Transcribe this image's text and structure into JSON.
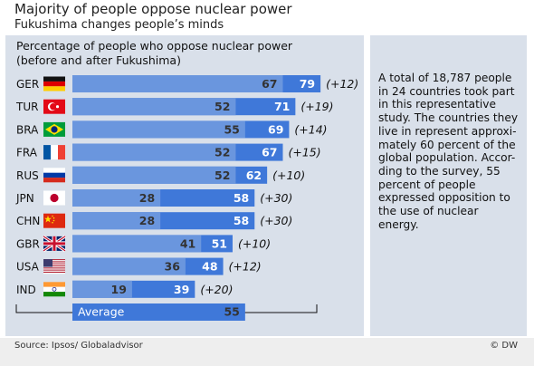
{
  "title": "Majority of people oppose nuclear power",
  "subtitle": "Fukushima changes people’s minds",
  "note": "A total of 18,787 people in 24 countries took part in this representative study. The countries they live in represent approxi-mately 60 percent of the global population. Accor-ding to the survey, 55 percent of people expressed opposition to the use of nuclear energy.",
  "source": "Source: Ipsos/ Globaladvisor",
  "credit": "© DW",
  "colors": {
    "before": "#6a96de",
    "after": "#3f78d9",
    "panel": "#d9e0ea",
    "text_on_bar": "#ffffff"
  },
  "chart_data": {
    "type": "bar",
    "title_lines": [
      "Percentage of people who oppose nuclear power",
      "(before and after Fukushima)"
    ],
    "categories": [
      "GER",
      "TUR",
      "BRA",
      "FRA",
      "RUS",
      "JPN",
      "CHN",
      "GBR",
      "USA",
      "IND"
    ],
    "flags": [
      "germany-flag-icon",
      "turkey-flag-icon",
      "brazil-flag-icon",
      "france-flag-icon",
      "russia-flag-icon",
      "japan-flag-icon",
      "china-flag-icon",
      "uk-flag-icon",
      "usa-flag-icon",
      "india-flag-icon"
    ],
    "series": [
      {
        "values": [
          67,
          52,
          55,
          52,
          52,
          28,
          28,
          41,
          36,
          19
        ]
      },
      {
        "values": [
          79,
          71,
          69,
          67,
          62,
          58,
          58,
          51,
          48,
          39
        ]
      }
    ],
    "change_labels": [
      "(+12)",
      "(+19)",
      "(+14)",
      "(+15)",
      "(+10)",
      "(+30)",
      "(+30)",
      "(+10)",
      "(+12)",
      "(+20)"
    ],
    "average": {
      "label": "Average",
      "value": 55
    },
    "xlim": [
      0,
      100
    ]
  }
}
